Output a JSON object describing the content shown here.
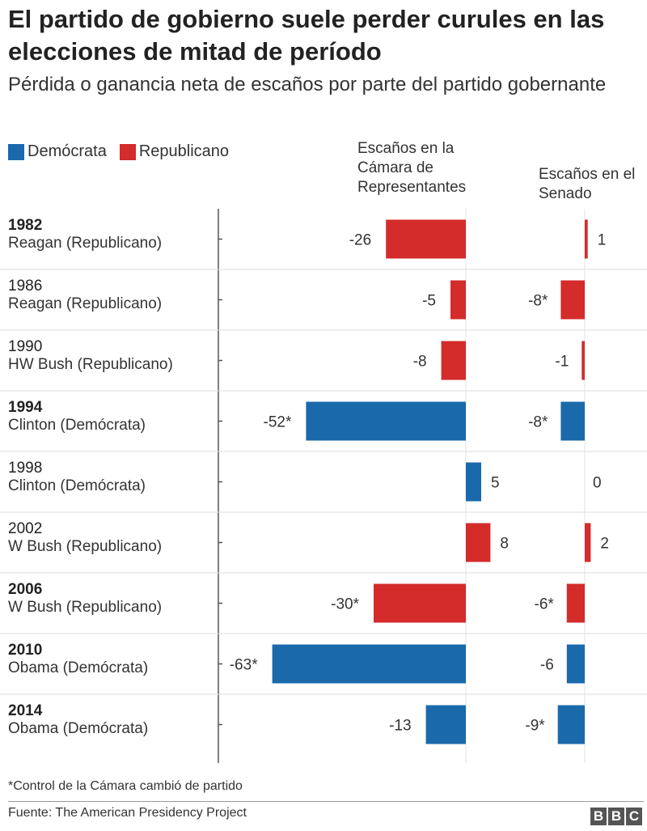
{
  "header": {
    "title": "El partido de gobierno suele perder curules en las elecciones de mitad de período",
    "subtitle": "Pérdida o ganancia neta de escaños por parte del partido gobernante"
  },
  "legend": [
    {
      "label": "Demócrata",
      "color": "#1a6aab"
    },
    {
      "label": "Republicano",
      "color": "#d42b2b"
    }
  ],
  "chart_data": {
    "type": "bar",
    "orientation": "horizontal",
    "columns": [
      {
        "key": "house",
        "label": "Escaños en la Cámara de Representantes"
      },
      {
        "key": "senate",
        "label": "Escaños en el Senado"
      }
    ],
    "rows": [
      {
        "year": "1982",
        "president": "Reagan (Republicano)",
        "party": "Republicano",
        "bold": true,
        "house": -26,
        "house_label": "-26",
        "senate": 1,
        "senate_label": "1"
      },
      {
        "year": "1986",
        "president": "Reagan (Republicano)",
        "party": "Republicano",
        "bold": false,
        "house": -5,
        "house_label": "-5",
        "senate": -8,
        "senate_label": "-8*"
      },
      {
        "year": "1990",
        "president": "HW Bush (Republicano)",
        "party": "Republicano",
        "bold": false,
        "house": -8,
        "house_label": "-8",
        "senate": -1,
        "senate_label": "-1"
      },
      {
        "year": "1994",
        "president": "Clinton (Demócrata)",
        "party": "Demócrata",
        "bold": true,
        "house": -52,
        "house_label": "-52*",
        "senate": -8,
        "senate_label": "-8*"
      },
      {
        "year": "1998",
        "president": "Clinton (Demócrata)",
        "party": "Demócrata",
        "bold": false,
        "house": 5,
        "house_label": "5",
        "senate": 0,
        "senate_label": "0"
      },
      {
        "year": "2002",
        "president": "W Bush (Republicano)",
        "party": "Republicano",
        "bold": false,
        "house": 8,
        "house_label": "8",
        "senate": 2,
        "senate_label": "2"
      },
      {
        "year": "2006",
        "president": "W Bush (Republicano)",
        "party": "Republicano",
        "bold": true,
        "house": -30,
        "house_label": "-30*",
        "senate": -6,
        "senate_label": "-6*"
      },
      {
        "year": "2010",
        "president": "Obama (Demócrata)",
        "party": "Demócrata",
        "bold": true,
        "house": -63,
        "house_label": "-63*",
        "senate": -6,
        "senate_label": "-6"
      },
      {
        "year": "2014",
        "president": "Obama (Demócrata)",
        "party": "Demócrata",
        "bold": true,
        "house": -13,
        "house_label": "-13",
        "senate": -9,
        "senate_label": "-9*"
      }
    ]
  },
  "footer": {
    "footnote": "*Control de la Cámara cambió de partido",
    "source": "Fuente: The American Presidency Project",
    "logo": [
      "B",
      "B",
      "C"
    ]
  }
}
